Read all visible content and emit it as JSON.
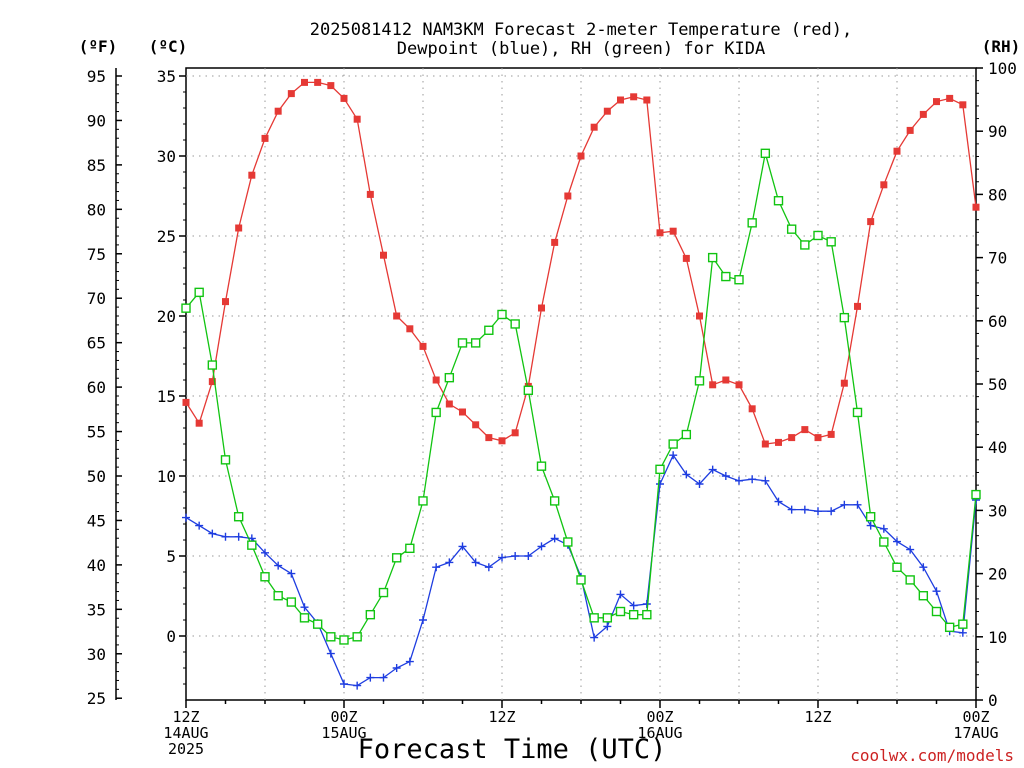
{
  "header": {
    "title_line1": "2025081412 NAM3KM Forecast 2-meter Temperature (red),",
    "title_line2": "Dewpoint (blue), RH (green) for KIDA"
  },
  "units": {
    "fahrenheit": "(ºF)",
    "celsius": "(ºC)",
    "rh": "(RH)"
  },
  "footer": {
    "xlabel": "Forecast Time (UTC)",
    "credit": "coolwx.com/models"
  },
  "colors": {
    "temperature": "#e53935",
    "dewpoint": "#1e3de0",
    "rh": "#11c411",
    "grid": "#9a9a9a"
  },
  "chart_data": {
    "type": "line",
    "title": "2025081412 NAM3KM Forecast 2-meter Temperature (red), Dewpoint (blue), RH (green) for KIDA",
    "xlabel": "Forecast Time (UTC)",
    "x_unit": "forecast hour from 2025-08-14 12Z",
    "x": [
      0,
      1,
      2,
      3,
      4,
      5,
      6,
      7,
      8,
      9,
      10,
      11,
      12,
      13,
      14,
      15,
      16,
      17,
      18,
      19,
      20,
      21,
      22,
      23,
      24,
      25,
      26,
      27,
      28,
      29,
      30,
      31,
      32,
      33,
      34,
      35,
      36,
      37,
      38,
      39,
      40,
      41,
      42,
      43,
      44,
      45,
      46,
      47,
      48,
      49,
      50,
      51,
      52,
      53,
      54,
      55,
      56,
      57,
      58,
      59,
      60
    ],
    "xlim": [
      0,
      60
    ],
    "x_ticks": [
      {
        "hour": 0,
        "lines": [
          "12Z",
          "14AUG",
          "2025"
        ]
      },
      {
        "hour": 12,
        "lines": [
          "00Z",
          "15AUG"
        ]
      },
      {
        "hour": 24,
        "lines": [
          "12Z"
        ]
      },
      {
        "hour": 36,
        "lines": [
          "00Z",
          "16AUG"
        ]
      },
      {
        "hour": 48,
        "lines": [
          "12Z"
        ]
      },
      {
        "hour": 60,
        "lines": [
          "00Z",
          "17AUG"
        ]
      }
    ],
    "y_left_celsius": {
      "range": [
        -4,
        35.5
      ],
      "ticks": [
        "0",
        "5",
        "10",
        "15",
        "20",
        "25",
        "30",
        "35"
      ]
    },
    "y_left_fahrenheit": {
      "ticks": [
        "25",
        "30",
        "35",
        "40",
        "45",
        "50",
        "55",
        "60",
        "65",
        "70",
        "75",
        "80",
        "85",
        "90",
        "95"
      ]
    },
    "y_right_rh": {
      "range": [
        0,
        100
      ],
      "ticks": [
        "0",
        "10",
        "20",
        "30",
        "40",
        "50",
        "60",
        "70",
        "80",
        "90",
        "100"
      ]
    },
    "grid": true,
    "series": [
      {
        "key": "temperature",
        "axis": "celsius",
        "marker": "filled-square",
        "values": [
          14.6,
          13.3,
          15.9,
          20.9,
          25.5,
          28.8,
          31.1,
          32.8,
          33.9,
          34.6,
          34.6,
          34.4,
          33.6,
          32.3,
          27.6,
          23.8,
          20.0,
          19.2,
          18.1,
          16.0,
          14.5,
          14.0,
          13.2,
          12.4,
          12.2,
          12.7,
          15.6,
          20.5,
          24.6,
          27.5,
          30.0,
          31.8,
          32.8,
          33.5,
          33.7,
          33.5,
          25.2,
          25.3,
          23.6,
          20.0,
          15.7,
          16.0,
          15.7,
          14.2,
          12.0,
          12.1,
          12.4,
          12.9,
          12.4,
          12.6,
          15.8,
          20.6,
          25.9,
          28.2,
          30.3,
          31.6,
          32.6,
          33.4,
          33.6,
          33.2,
          26.8
        ]
      },
      {
        "key": "dewpoint",
        "axis": "celsius",
        "marker": "plus",
        "values": [
          7.4,
          6.9,
          6.4,
          6.2,
          6.2,
          6.1,
          5.2,
          4.4,
          3.9,
          1.8,
          0.8,
          -1.1,
          -3.0,
          -3.1,
          -2.6,
          -2.6,
          -2.0,
          -1.6,
          1.0,
          4.3,
          4.6,
          5.6,
          4.6,
          4.3,
          4.9,
          5.0,
          5.0,
          5.6,
          6.1,
          5.7,
          3.7,
          -0.1,
          0.6,
          2.6,
          1.9,
          2.0,
          9.5,
          11.3,
          10.1,
          9.5,
          10.4,
          10.0,
          9.7,
          9.8,
          9.7,
          8.4,
          7.9,
          7.9,
          7.8,
          7.8,
          8.2,
          8.2,
          6.9,
          6.7,
          5.9,
          5.4,
          4.3,
          2.8,
          0.3,
          0.2,
          8.5
        ]
      },
      {
        "key": "rh",
        "axis": "rh",
        "marker": "open-square",
        "values": [
          62,
          64.5,
          53,
          38,
          29,
          24.5,
          19.5,
          16.5,
          15.5,
          13,
          12,
          10,
          9.5,
          10,
          13.5,
          17,
          22.5,
          24,
          31.5,
          45.5,
          51,
          56.5,
          56.5,
          58.5,
          61,
          59.5,
          49,
          37,
          31.5,
          25,
          19,
          13,
          13,
          14,
          13.5,
          13.5,
          36.5,
          40.5,
          42,
          50.5,
          70,
          67,
          66.5,
          75.5,
          86.5,
          79,
          74.5,
          72,
          73.5,
          72.5,
          60.5,
          45.5,
          29,
          25,
          21,
          19,
          16.5,
          14,
          11.5,
          12,
          32.5
        ]
      }
    ]
  }
}
